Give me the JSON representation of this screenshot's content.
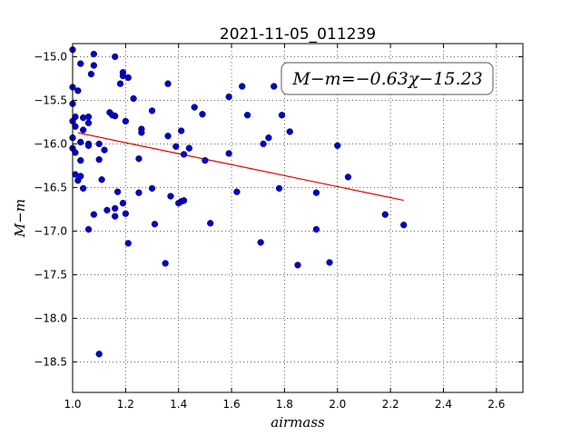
{
  "chart_data": {
    "type": "scatter",
    "title": "2021-11-05_011239",
    "xlabel": "airmass",
    "ylabel": "M−m",
    "xlim": [
      1.0,
      2.7
    ],
    "ylim": [
      -14.85,
      -18.85
    ],
    "y_inverted": true,
    "grid": true,
    "grid_style": "dotted",
    "xticks": [
      1.0,
      1.2,
      1.4,
      1.6,
      1.8,
      2.0,
      2.2,
      2.4,
      2.6
    ],
    "xtick_labels": [
      "1.0",
      "1.2",
      "1.4",
      "1.6",
      "1.8",
      "2.0",
      "2.2",
      "2.4",
      "2.6"
    ],
    "yticks": [
      -15.0,
      -15.5,
      -16.0,
      -16.5,
      -17.0,
      -17.5,
      -18.0,
      -18.5
    ],
    "ytick_labels": [
      "−15.0",
      "−15.5",
      "−16.0",
      "−16.5",
      "−17.0",
      "−17.5",
      "−18.0",
      "−18.5"
    ],
    "annotation": "M−m=−0.63χ−15.23",
    "annotation_placement": "top-right",
    "point_color": "#0000cc",
    "fit_color": "#dd0000",
    "fit": {
      "slope": -0.63,
      "intercept": -15.23,
      "x_range": [
        1.02,
        2.25
      ]
    },
    "points": [
      [
        1.0,
        -14.92
      ],
      [
        1.08,
        -14.97
      ],
      [
        1.16,
        -15.0
      ],
      [
        1.08,
        -15.1
      ],
      [
        1.03,
        -15.08
      ],
      [
        1.07,
        -15.2
      ],
      [
        1.19,
        -15.18
      ],
      [
        1.19,
        -15.22
      ],
      [
        1.21,
        -15.24
      ],
      [
        1.18,
        -15.31
      ],
      [
        1.0,
        -15.35
      ],
      [
        1.02,
        -15.39
      ],
      [
        1.36,
        -15.31
      ],
      [
        1.23,
        -15.48
      ],
      [
        1.0,
        -15.54
      ],
      [
        1.59,
        -15.46
      ],
      [
        1.64,
        -15.34
      ],
      [
        1.76,
        -15.34
      ],
      [
        1.46,
        -15.58
      ],
      [
        1.49,
        -15.66
      ],
      [
        1.3,
        -15.62
      ],
      [
        1.14,
        -15.64
      ],
      [
        1.16,
        -15.68
      ],
      [
        1.15,
        -15.67
      ],
      [
        1.01,
        -15.69
      ],
      [
        1.04,
        -15.7
      ],
      [
        1.06,
        -15.69
      ],
      [
        1.66,
        -15.67
      ],
      [
        1.79,
        -15.67
      ],
      [
        1.0,
        -15.74
      ],
      [
        1.06,
        -15.76
      ],
      [
        1.01,
        -15.8
      ],
      [
        1.04,
        -15.84
      ],
      [
        1.2,
        -15.74
      ],
      [
        1.26,
        -15.83
      ],
      [
        1.41,
        -15.85
      ],
      [
        1.26,
        -15.87
      ],
      [
        1.36,
        -15.91
      ],
      [
        1.82,
        -15.86
      ],
      [
        1.74,
        -15.93
      ],
      [
        1.0,
        -15.93
      ],
      [
        1.03,
        -15.98
      ],
      [
        1.06,
        -16.0
      ],
      [
        1.1,
        -16.0
      ],
      [
        1.06,
        -16.02
      ],
      [
        1.0,
        -16.05
      ],
      [
        1.39,
        -16.03
      ],
      [
        1.44,
        -16.05
      ],
      [
        1.12,
        -16.07
      ],
      [
        1.01,
        -16.1
      ],
      [
        1.42,
        -16.12
      ],
      [
        1.59,
        -16.11
      ],
      [
        1.72,
        -16.0
      ],
      [
        2.0,
        -16.02
      ],
      [
        1.03,
        -16.19
      ],
      [
        1.1,
        -16.18
      ],
      [
        1.25,
        -16.17
      ],
      [
        1.5,
        -16.19
      ],
      [
        1.01,
        -16.35
      ],
      [
        1.03,
        -16.37
      ],
      [
        1.02,
        -16.42
      ],
      [
        1.11,
        -16.41
      ],
      [
        2.04,
        -16.38
      ],
      [
        1.04,
        -16.51
      ],
      [
        1.3,
        -16.51
      ],
      [
        1.17,
        -16.55
      ],
      [
        1.25,
        -16.56
      ],
      [
        1.37,
        -16.6
      ],
      [
        1.62,
        -16.55
      ],
      [
        1.78,
        -16.51
      ],
      [
        1.92,
        -16.56
      ],
      [
        1.42,
        -16.65
      ],
      [
        1.41,
        -16.66
      ],
      [
        1.4,
        -16.68
      ],
      [
        1.19,
        -16.68
      ],
      [
        1.13,
        -16.76
      ],
      [
        1.16,
        -16.74
      ],
      [
        1.2,
        -16.8
      ],
      [
        1.08,
        -16.81
      ],
      [
        1.16,
        -16.83
      ],
      [
        1.06,
        -16.98
      ],
      [
        1.31,
        -16.92
      ],
      [
        1.52,
        -16.91
      ],
      [
        1.92,
        -16.98
      ],
      [
        2.18,
        -16.81
      ],
      [
        2.25,
        -16.93
      ],
      [
        1.21,
        -17.14
      ],
      [
        1.71,
        -17.13
      ],
      [
        1.35,
        -17.37
      ],
      [
        1.85,
        -17.39
      ],
      [
        1.97,
        -17.36
      ],
      [
        1.1,
        -18.41
      ]
    ]
  }
}
